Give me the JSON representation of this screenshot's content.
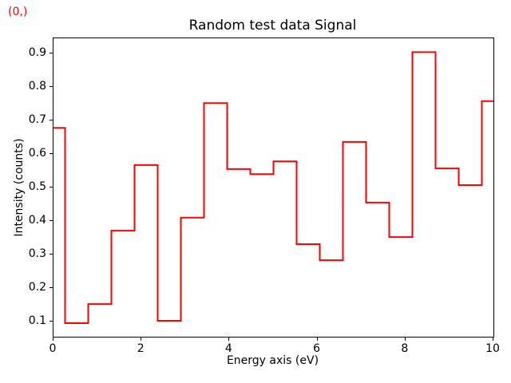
{
  "nav_indicator": {
    "text": "(0,)",
    "color": "#ff0000"
  },
  "chart_data": {
    "type": "line",
    "step_style": "mid",
    "title": "Random test data Signal",
    "xlabel": "Energy axis (eV)",
    "ylabel": "Intensity (counts)",
    "line_color": "#ff0000",
    "background_color": "#ffffff",
    "grid": false,
    "legend": "none",
    "xlim": [
      0,
      10
    ],
    "ylim": [
      0.0545,
      0.9455
    ],
    "xticks": [
      0,
      2,
      4,
      6,
      8,
      10
    ],
    "yticks": [
      0.1,
      0.2,
      0.3,
      0.4,
      0.5,
      0.6,
      0.7,
      0.8,
      0.9
    ],
    "x": [
      0.0,
      0.526,
      1.053,
      1.579,
      2.105,
      2.632,
      3.158,
      3.684,
      4.211,
      4.737,
      5.263,
      5.789,
      6.316,
      6.842,
      7.368,
      7.895,
      8.421,
      8.947,
      9.474,
      10.0
    ],
    "y": [
      0.678,
      0.095,
      0.152,
      0.371,
      0.567,
      0.102,
      0.41,
      0.752,
      0.555,
      0.54,
      0.578,
      0.331,
      0.283,
      0.636,
      0.455,
      0.352,
      0.904,
      0.557,
      0.507,
      0.758
    ]
  }
}
